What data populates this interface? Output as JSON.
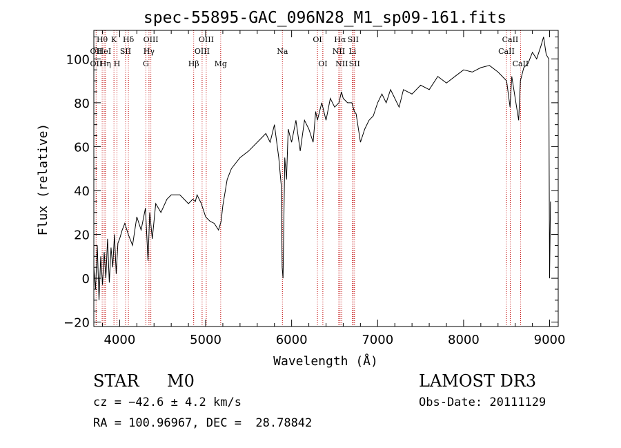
{
  "colors": {
    "background": "#ffffff",
    "axis": "#000000",
    "spectrum": "#000000",
    "line_markers": "#c00000"
  },
  "chart_data": {
    "type": "line",
    "title": "spec-55895-GAC_096N28_M1_sp09-161.fits",
    "xlabel": "Wavelength (Å)",
    "ylabel": "Flux (relative)",
    "xlim": [
      3700,
      9100
    ],
    "ylim": [
      -22,
      113
    ],
    "xticks": [
      4000,
      5000,
      6000,
      7000,
      8000,
      9000
    ],
    "yticks": [
      -20,
      0,
      20,
      40,
      60,
      80,
      100
    ],
    "series": [
      {
        "name": "spectrum",
        "x": [
          3700,
          3720,
          3740,
          3760,
          3780,
          3800,
          3820,
          3840,
          3860,
          3880,
          3900,
          3920,
          3940,
          3960,
          3980,
          4000,
          4030,
          4060,
          4100,
          4150,
          4200,
          4250,
          4300,
          4330,
          4350,
          4380,
          4420,
          4480,
          4550,
          4600,
          4700,
          4800,
          4850,
          4880,
          4900,
          4950,
          5000,
          5050,
          5100,
          5150,
          5180,
          5200,
          5250,
          5300,
          5400,
          5500,
          5600,
          5700,
          5750,
          5800,
          5850,
          5880,
          5890,
          5900,
          5920,
          5940,
          5960,
          6000,
          6050,
          6100,
          6150,
          6200,
          6250,
          6280,
          6300,
          6350,
          6400,
          6450,
          6500,
          6550,
          6580,
          6600,
          6650,
          6700,
          6730,
          6750,
          6800,
          6850,
          6900,
          6950,
          7000,
          7050,
          7100,
          7150,
          7200,
          7250,
          7300,
          7400,
          7500,
          7600,
          7700,
          7800,
          7900,
          8000,
          8100,
          8200,
          8300,
          8400,
          8500,
          8540,
          8560,
          8600,
          8640,
          8660,
          8700,
          8750,
          8800,
          8850,
          8900,
          8930,
          8960,
          8990,
          9000,
          9010
        ],
        "y": [
          5,
          -5,
          15,
          -10,
          10,
          -3,
          12,
          0,
          18,
          -2,
          14,
          5,
          20,
          2,
          16,
          18,
          22,
          25,
          20,
          15,
          28,
          22,
          32,
          8,
          30,
          18,
          34,
          30,
          36,
          38,
          38,
          34,
          36,
          35,
          38,
          34,
          28,
          26,
          25,
          22,
          26,
          33,
          45,
          50,
          55,
          58,
          62,
          66,
          62,
          70,
          55,
          42,
          5,
          0,
          55,
          45,
          68,
          62,
          72,
          58,
          72,
          68,
          62,
          76,
          72,
          80,
          72,
          82,
          78,
          80,
          85,
          82,
          80,
          80,
          76,
          75,
          62,
          68,
          72,
          74,
          80,
          84,
          80,
          86,
          82,
          78,
          86,
          84,
          88,
          86,
          92,
          89,
          92,
          95,
          94,
          96,
          97,
          94,
          90,
          78,
          92,
          82,
          72,
          90,
          96,
          98,
          103,
          100,
          106,
          110,
          102,
          100,
          0,
          35
        ]
      }
    ],
    "line_markers": [
      {
        "name": "OII",
        "wavelength": 3727,
        "row": 2
      },
      {
        "name": "Hθ",
        "wavelength": 3797,
        "row": 1
      },
      {
        "name": "OII",
        "wavelength": 3727,
        "row": 3
      },
      {
        "name": "HeI",
        "wavelength": 3820,
        "row": 2
      },
      {
        "name": "Hη",
        "wavelength": 3835,
        "row": 3
      },
      {
        "name": "K",
        "wavelength": 3934,
        "row": 1
      },
      {
        "name": "SII",
        "wavelength": 4069,
        "row": 2
      },
      {
        "name": "H",
        "wavelength": 3969,
        "row": 3
      },
      {
        "name": "Hδ",
        "wavelength": 4102,
        "row": 1
      },
      {
        "name": "OIII",
        "wavelength": 4363,
        "row": 1
      },
      {
        "name": "Hγ",
        "wavelength": 4341,
        "row": 2
      },
      {
        "name": "G",
        "wavelength": 4305,
        "row": 3
      },
      {
        "name": "Hβ",
        "wavelength": 4861,
        "row": 3
      },
      {
        "name": "OIII",
        "wavelength": 5007,
        "row": 1
      },
      {
        "name": "OIII",
        "wavelength": 4959,
        "row": 2
      },
      {
        "name": "Mg",
        "wavelength": 5175,
        "row": 3
      },
      {
        "name": "Na",
        "wavelength": 5893,
        "row": 2
      },
      {
        "name": "OI",
        "wavelength": 6300,
        "row": 1
      },
      {
        "name": "OI",
        "wavelength": 6363,
        "row": 3
      },
      {
        "name": "Hα",
        "wavelength": 6563,
        "row": 1
      },
      {
        "name": "NII",
        "wavelength": 6548,
        "row": 2
      },
      {
        "name": "NII",
        "wavelength": 6583,
        "row": 3
      },
      {
        "name": "SII",
        "wavelength": 6716,
        "row": 1
      },
      {
        "name": "Li",
        "wavelength": 6708,
        "row": 2
      },
      {
        "name": "SII",
        "wavelength": 6731,
        "row": 3
      },
      {
        "name": "CaII",
        "wavelength": 8542,
        "row": 1
      },
      {
        "name": "CaII",
        "wavelength": 8498,
        "row": 2
      },
      {
        "name": "CaII",
        "wavelength": 8662,
        "row": 3
      }
    ]
  },
  "info": {
    "object_class": "STAR",
    "subclass": "M0",
    "survey": "LAMOST DR3",
    "redshift": "cz = −42.6 ± 4.2 km/s",
    "obs_date": "Obs-Date: 20111129",
    "coords": "RA = 100.96967, DEC =  28.78842"
  }
}
